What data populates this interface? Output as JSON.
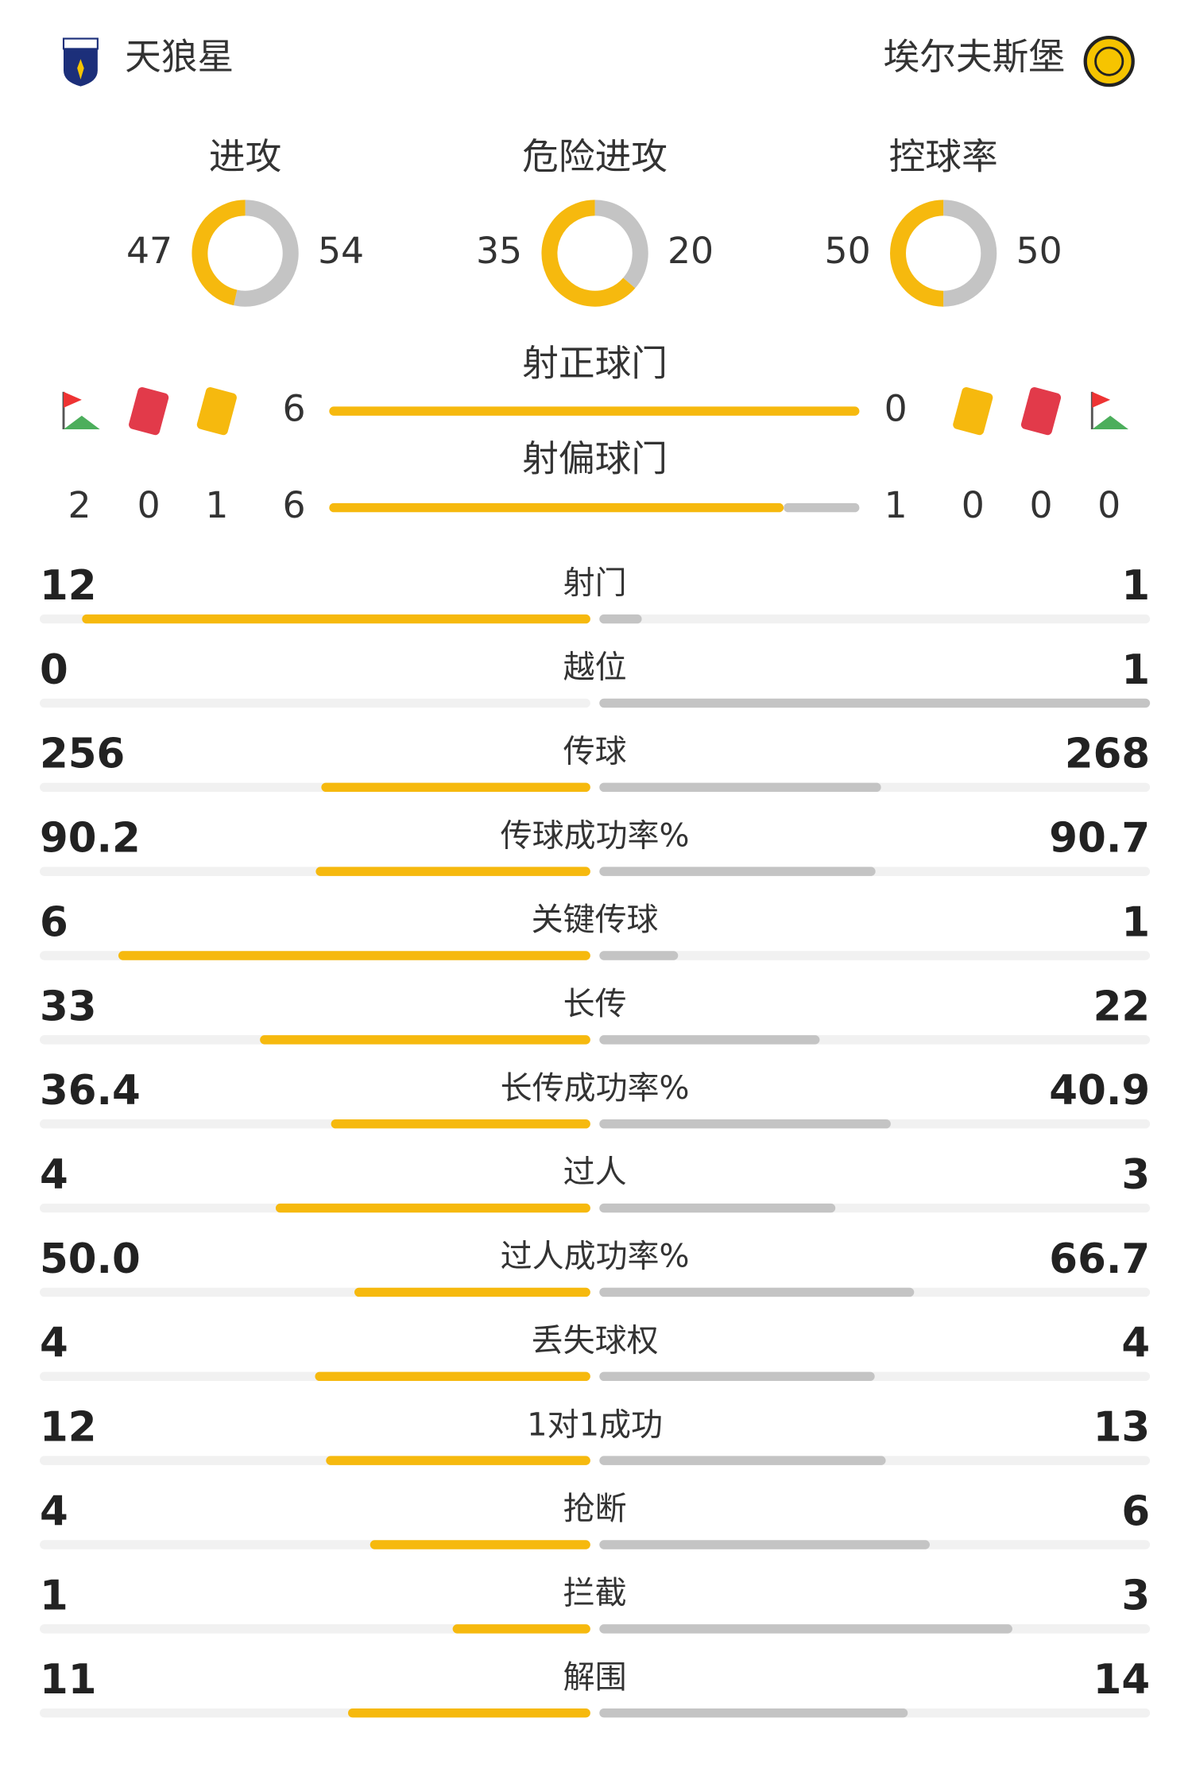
{
  "teams": {
    "home": "天狼星",
    "away": "埃尔夫斯堡"
  },
  "rings": [
    {
      "label": "进攻",
      "values": [
        47,
        54
      ]
    },
    {
      "label": "危险进攻",
      "values": [
        35,
        20
      ]
    },
    {
      "label": "控球率",
      "values": [
        50,
        50
      ]
    }
  ],
  "shots": [
    {
      "label": "射正球门",
      "values": [
        6,
        0
      ]
    },
    {
      "label": "射偏球门",
      "values": [
        6,
        1
      ]
    }
  ],
  "events": {
    "home": [
      2,
      0,
      1
    ],
    "away": [
      0,
      0,
      0
    ]
  },
  "colors": {
    "home": "#f6b90e",
    "away": "#c4c4c4"
  },
  "stats": [
    {
      "name": "射门",
      "values": [
        12,
        1
      ]
    },
    {
      "name": "越位",
      "values": [
        0,
        1
      ]
    },
    {
      "name": "传球",
      "values": [
        256,
        268
      ]
    },
    {
      "name": "传球成功率%",
      "values": [
        90.2,
        90.7
      ]
    },
    {
      "name": "关键传球",
      "values": [
        6,
        1
      ]
    },
    {
      "name": "长传",
      "values": [
        33,
        22
      ]
    },
    {
      "name": "长传成功率%",
      "values": [
        36.4,
        40.9
      ]
    },
    {
      "name": "过人",
      "values": [
        4,
        3
      ]
    },
    {
      "name": "过人成功率%",
      "values": [
        50.0,
        66.7
      ],
      "value_labels": [
        "50.0",
        "66.7"
      ]
    },
    {
      "name": "丢失球权",
      "values": [
        4,
        4
      ]
    },
    {
      "name": "1对1成功",
      "values": [
        12,
        13
      ]
    },
    {
      "name": "抢断",
      "values": [
        4,
        6
      ]
    },
    {
      "name": "拦截",
      "values": [
        1,
        3
      ]
    },
    {
      "name": "解围",
      "values": [
        11,
        14
      ]
    }
  ]
}
